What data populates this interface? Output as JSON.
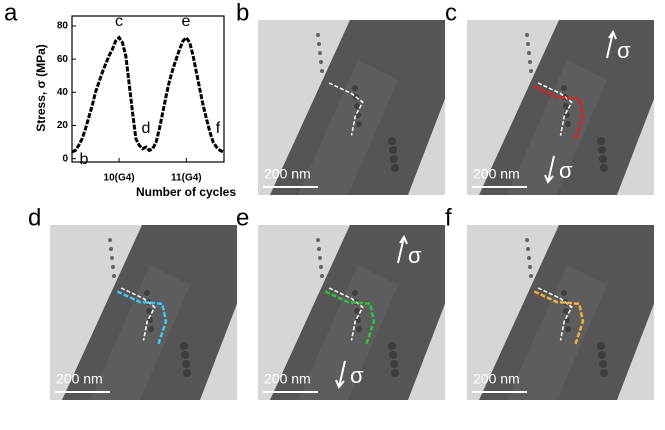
{
  "chart_data": {
    "type": "line",
    "label": "a",
    "ylabel": "Stress, σ (MPa)",
    "xlabel": "Number of cycles",
    "x": [
      9.3,
      9.35,
      9.4,
      9.45,
      9.5,
      9.55,
      9.6,
      9.65,
      9.7,
      9.75,
      9.8,
      9.85,
      9.9,
      9.95,
      10.0,
      10.05,
      10.1,
      10.15,
      10.2,
      10.25,
      10.3,
      10.35,
      10.4,
      10.45,
      10.5,
      10.55,
      10.6,
      10.65,
      10.7,
      10.75,
      10.8,
      10.85,
      10.9,
      10.95,
      11.0,
      11.05,
      11.1,
      11.15,
      11.2,
      11.25,
      11.3,
      11.35,
      11.4,
      11.45,
      11.5,
      11.55
    ],
    "values": [
      4,
      5,
      8,
      12,
      18,
      25,
      32,
      40,
      46,
      52,
      57,
      62,
      66,
      71,
      73,
      70,
      62,
      45,
      28,
      12,
      8,
      6,
      7,
      5,
      6,
      10,
      18,
      28,
      38,
      47,
      54,
      60,
      66,
      71,
      73,
      70,
      62,
      52,
      42,
      32,
      24,
      16,
      10,
      7,
      5,
      4
    ],
    "color": "#000000",
    "xlim": [
      9.3,
      11.56
    ],
    "ylim": [
      -2,
      86
    ],
    "xticks": [
      {
        "value": 10,
        "label": "10(G4)"
      },
      {
        "value": 11,
        "label": "11(G4)"
      }
    ],
    "yticks": [
      0,
      20,
      40,
      60,
      80
    ],
    "annotations": [
      "b",
      "c",
      "d",
      "e",
      "f"
    ]
  },
  "panels": [
    {
      "label": "b",
      "scale": "200 nm",
      "trace_color": "#ffffff"
    },
    {
      "label": "c",
      "scale": "200 nm",
      "trace_color": "#e02020",
      "sigma_top": "σ",
      "sigma_bottom": "σ"
    },
    {
      "label": "d",
      "scale": "200 nm",
      "trace_color": "#40c8f0"
    },
    {
      "label": "e",
      "scale": "200 nm",
      "trace_color": "#30c040",
      "sigma_top": "σ",
      "sigma_bottom": "σ"
    },
    {
      "label": "f",
      "scale": "200 nm",
      "trace_color": "#f0b040"
    }
  ]
}
